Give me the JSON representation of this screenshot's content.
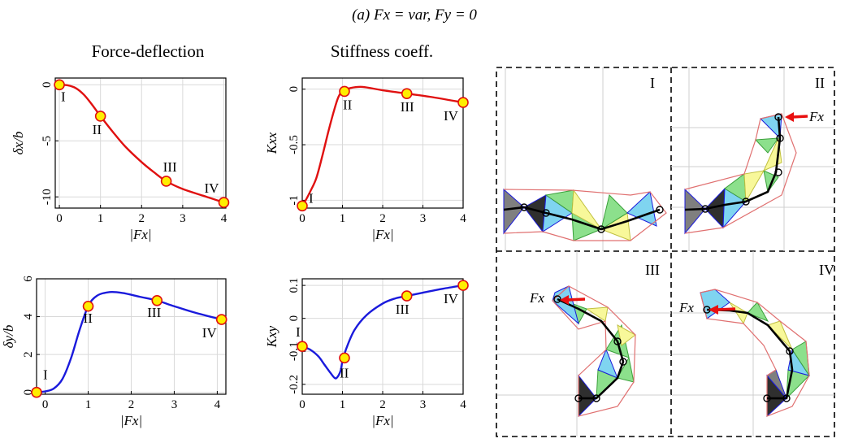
{
  "figure": {
    "title": "(a)  Fx = var,   Fy = 0",
    "col1_title": "Force-deflection",
    "col2_title": "Stiffness coeff."
  },
  "chart_data": [
    {
      "type": "line",
      "id": "dx",
      "xlabel": "|Fx|",
      "ylabel": "δx/b",
      "xlim": [
        -0.1,
        4.05
      ],
      "ylim": [
        -11,
        0.6
      ],
      "xticks": [
        0,
        1,
        2,
        3,
        4
      ],
      "yticks": [
        -10,
        -5,
        0
      ],
      "grid": true,
      "color": "#e01010",
      "x": [
        0,
        0.2,
        0.4,
        0.6,
        0.8,
        1.0,
        1.3,
        1.6,
        2.0,
        2.3,
        2.6,
        3.0,
        3.5,
        4.0
      ],
      "y": [
        0,
        -0.05,
        -0.3,
        -0.9,
        -1.8,
        -2.8,
        -4.2,
        -5.5,
        -6.9,
        -7.8,
        -8.6,
        -9.3,
        -9.9,
        -10.5
      ],
      "points": [
        {
          "label": "I",
          "x": 0,
          "y": 0
        },
        {
          "label": "II",
          "x": 1.0,
          "y": -2.8
        },
        {
          "label": "III",
          "x": 2.6,
          "y": -8.6
        },
        {
          "label": "IV",
          "x": 4.0,
          "y": -10.5
        }
      ]
    },
    {
      "type": "line",
      "id": "kxx",
      "xlabel": "|Fx|",
      "ylabel": "Kxx",
      "xlim": [
        0,
        4
      ],
      "ylim": [
        -1.07,
        0.1
      ],
      "xticks": [
        0,
        1,
        2,
        3,
        4
      ],
      "yticks": [
        -1,
        -0.5,
        0
      ],
      "grid": true,
      "color": "#e01010",
      "x": [
        0,
        0.1,
        0.2,
        0.35,
        0.5,
        0.65,
        0.8,
        0.9,
        1.0,
        1.2,
        1.5,
        2.0,
        2.6,
        3.2,
        4.0
      ],
      "y": [
        -1.05,
        -0.99,
        -0.92,
        -0.8,
        -0.6,
        -0.38,
        -0.18,
        -0.07,
        -0.02,
        0.01,
        0.02,
        -0.01,
        -0.04,
        -0.07,
        -0.12
      ],
      "points": [
        {
          "label": "I",
          "x": 0,
          "y": -1.05
        },
        {
          "label": "II",
          "x": 1.05,
          "y": -0.02
        },
        {
          "label": "III",
          "x": 2.6,
          "y": -0.04
        },
        {
          "label": "IV",
          "x": 4.0,
          "y": -0.12
        }
      ]
    },
    {
      "type": "line",
      "id": "dy",
      "xlabel": "|Fx|",
      "ylabel": "δy/b",
      "xlim": [
        -0.2,
        4.2
      ],
      "ylim": [
        -0.1,
        6
      ],
      "xticks": [
        0,
        1,
        2,
        3,
        4
      ],
      "yticks": [
        0,
        2,
        4,
        6
      ],
      "grid": true,
      "color": "#1a1adc",
      "x": [
        -0.2,
        0,
        0.2,
        0.4,
        0.6,
        0.8,
        1.0,
        1.2,
        1.5,
        1.8,
        2.2,
        2.6,
        3.0,
        3.5,
        4.1
      ],
      "y": [
        0,
        0.05,
        0.2,
        0.7,
        1.8,
        3.3,
        4.55,
        5.1,
        5.3,
        5.25,
        5.05,
        4.85,
        4.55,
        4.2,
        3.85
      ],
      "points": [
        {
          "label": "I",
          "x": -0.2,
          "y": 0
        },
        {
          "label": "II",
          "x": 1.0,
          "y": 4.55
        },
        {
          "label": "III",
          "x": 2.6,
          "y": 4.85
        },
        {
          "label": "IV",
          "x": 4.1,
          "y": 3.85
        }
      ]
    },
    {
      "type": "line",
      "id": "kxy",
      "xlabel": "|Fx|",
      "ylabel": "Kxy",
      "xlim": [
        0,
        4
      ],
      "ylim": [
        -0.23,
        0.12
      ],
      "xticks": [
        0,
        1,
        2,
        3,
        4
      ],
      "yticks": [
        -0.2,
        -0.1,
        0,
        0.1
      ],
      "grid": true,
      "color": "#1a1adc",
      "x": [
        0,
        0.2,
        0.4,
        0.55,
        0.7,
        0.8,
        0.86,
        0.95,
        1.0,
        1.1,
        1.3,
        1.6,
        2.0,
        2.3,
        2.6,
        3.0,
        3.5,
        4.0
      ],
      "y": [
        -0.085,
        -0.095,
        -0.115,
        -0.14,
        -0.165,
        -0.18,
        -0.18,
        -0.16,
        -0.13,
        -0.09,
        -0.035,
        0.01,
        0.045,
        0.06,
        0.068,
        0.078,
        0.09,
        0.1
      ],
      "points": [
        {
          "label": "I",
          "x": 0,
          "y": -0.085
        },
        {
          "label": "II",
          "x": 1.05,
          "y": -0.12
        },
        {
          "label": "III",
          "x": 2.6,
          "y": 0.068
        },
        {
          "label": "IV",
          "x": 4.0,
          "y": 0.1
        }
      ]
    }
  ],
  "panels": {
    "labels": [
      "I",
      "II",
      "III",
      "IV"
    ],
    "force_label": "Fx"
  },
  "colors": {
    "marker_fill": "#ffee00",
    "marker_edge": "#e01010",
    "arrow": "#e81010",
    "mesh": "#e07070"
  }
}
